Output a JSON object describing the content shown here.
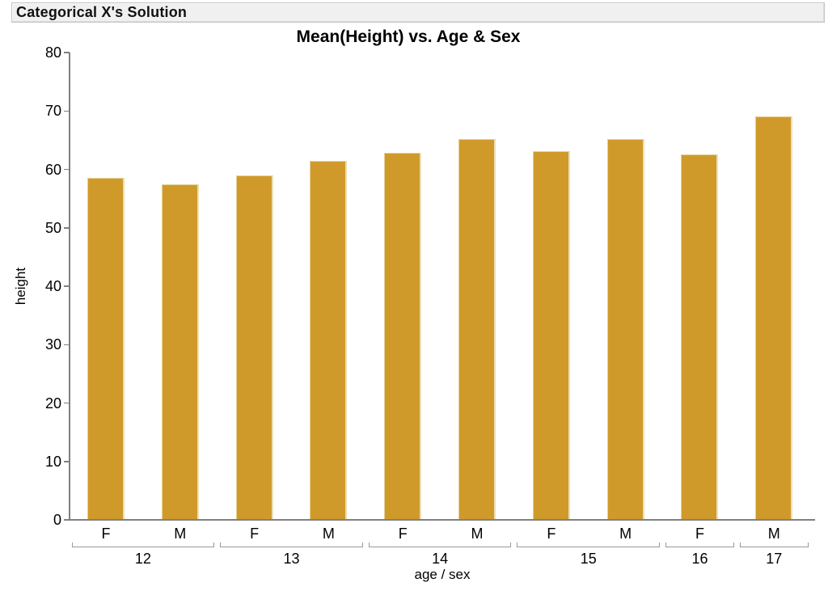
{
  "window": {
    "title": "Categorical X's Solution"
  },
  "chart_data": {
    "type": "bar",
    "title": "Mean(Height) vs. Age & Sex",
    "xlabel": "age / sex",
    "ylabel": "height",
    "ylim": [
      0,
      80
    ],
    "yticks": [
      0,
      10,
      20,
      30,
      40,
      50,
      60,
      70,
      80
    ],
    "grid": false,
    "legend": "none",
    "bar_color": "#D09A2B",
    "bar_edge_color": "#EADFB6",
    "axis_color": "#808080",
    "categories": [
      "12 F",
      "12 M",
      "13 F",
      "13 M",
      "14 F",
      "14 M",
      "15 F",
      "15 M",
      "16 F",
      "17 M"
    ],
    "values": [
      58.6,
      57.4,
      59.0,
      61.4,
      62.8,
      65.2,
      63.1,
      65.2,
      62.6,
      69.0
    ],
    "groups": [
      {
        "age": "12",
        "bars": [
          {
            "sex": "F",
            "value": 58.6
          },
          {
            "sex": "M",
            "value": 57.4
          }
        ]
      },
      {
        "age": "13",
        "bars": [
          {
            "sex": "F",
            "value": 59.0
          },
          {
            "sex": "M",
            "value": 61.4
          }
        ]
      },
      {
        "age": "14",
        "bars": [
          {
            "sex": "F",
            "value": 62.8
          },
          {
            "sex": "M",
            "value": 65.2
          }
        ]
      },
      {
        "age": "15",
        "bars": [
          {
            "sex": "F",
            "value": 63.1
          },
          {
            "sex": "M",
            "value": 65.2
          }
        ]
      },
      {
        "age": "16",
        "bars": [
          {
            "sex": "F",
            "value": 62.6
          }
        ]
      },
      {
        "age": "17",
        "bars": [
          {
            "sex": "M",
            "value": 69.0
          }
        ]
      }
    ]
  }
}
